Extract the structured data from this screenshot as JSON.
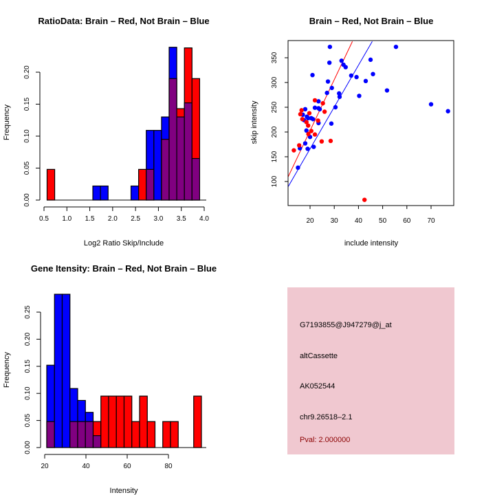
{
  "colors": {
    "brain": "#ff0000",
    "not_brain": "#0000ff",
    "overlap": "#800080",
    "info_bg": "#f0c8d0",
    "pval": "#8b0000"
  },
  "chart_data": [
    {
      "id": "ratio-hist",
      "type": "bar",
      "title": "RatioData: Brain – Red, Not Brain – Blue",
      "xlabel": "Log2 Ratio Skip/Include",
      "ylabel": "Frequency",
      "xlim": [
        0.5,
        4.0
      ],
      "ylim": [
        0,
        0.24
      ],
      "xticks": [
        "0.5",
        "1.0",
        "1.5",
        "2.0",
        "2.5",
        "3.0",
        "3.5",
        "4.0"
      ],
      "xtick_values": [
        0.5,
        1.0,
        1.5,
        2.0,
        2.5,
        3.0,
        3.5,
        4.0
      ],
      "yticks": [
        "0.00",
        "0.05",
        "0.10",
        "0.15",
        "0.20"
      ],
      "ytick_values": [
        0,
        0.05,
        0.1,
        0.15,
        0.2
      ],
      "bin_start": 0.567,
      "bin_width": 0.1667,
      "series": [
        {
          "name": "Brain",
          "color": "#ff0000",
          "values": [
            0.048,
            0,
            0,
            0,
            0,
            0,
            0,
            0,
            0,
            0,
            0,
            0,
            0.048,
            0.048,
            0,
            0.095,
            0.19,
            0.143,
            0.238,
            0.19
          ]
        },
        {
          "name": "Not Brain",
          "color": "#0000ff",
          "values": [
            0,
            0,
            0,
            0,
            0,
            0,
            0.022,
            0.022,
            0,
            0,
            0,
            0.022,
            0,
            0.109,
            0.109,
            0.13,
            0.239,
            0.13,
            0.152,
            0.065
          ]
        }
      ]
    },
    {
      "id": "scatter",
      "type": "scatter",
      "title": "Brain – Red, Not Brain – Blue",
      "xlabel": "include intensity",
      "ylabel": "skip intensity",
      "xlim": [
        11,
        80
      ],
      "ylim": [
        50,
        383
      ],
      "xticks": [
        "20",
        "30",
        "40",
        "50",
        "60",
        "70"
      ],
      "xtick_values": [
        20,
        30,
        40,
        50,
        60,
        70
      ],
      "yticks": [
        "100",
        "150",
        "200",
        "250",
        "300",
        "350"
      ],
      "ytick_values": [
        100,
        150,
        200,
        250,
        300,
        350
      ],
      "series": [
        {
          "name": "Brain",
          "color": "#ff0000",
          "points": [
            [
              13.3,
              163
            ],
            [
              15.5,
              173
            ],
            [
              16,
              236
            ],
            [
              16.5,
              244
            ],
            [
              16.8,
              226
            ],
            [
              18.5,
              220
            ],
            [
              19.2,
              213
            ],
            [
              19.3,
              196
            ],
            [
              19.7,
              238
            ],
            [
              20.5,
              202
            ],
            [
              22,
              264
            ],
            [
              22,
              195
            ],
            [
              23.3,
              223
            ],
            [
              24.8,
              181
            ],
            [
              25.3,
              258
            ],
            [
              26,
              241
            ],
            [
              28.5,
              182
            ],
            [
              42.5,
              63
            ]
          ],
          "fit_line": [
            [
              11,
              110
            ],
            [
              37.5,
              383
            ]
          ]
        },
        {
          "name": "Not Brain",
          "color": "#0000ff",
          "points": [
            [
              15,
              128
            ],
            [
              15.8,
              167
            ],
            [
              17,
              235
            ],
            [
              17.5,
              224
            ],
            [
              18,
              246
            ],
            [
              18,
              177
            ],
            [
              18.5,
              203
            ],
            [
              18.7,
              231
            ],
            [
              19,
              166
            ],
            [
              19.2,
              228
            ],
            [
              20,
              190
            ],
            [
              20.5,
              228
            ],
            [
              21,
              315
            ],
            [
              21.2,
              226
            ],
            [
              21.5,
              170
            ],
            [
              22,
              249
            ],
            [
              23.5,
              262
            ],
            [
              23.5,
              248
            ],
            [
              23.5,
              218
            ],
            [
              24,
              246
            ],
            [
              27,
              279
            ],
            [
              27.4,
              302
            ],
            [
              28,
              340
            ],
            [
              28.2,
              372
            ],
            [
              28.8,
              217
            ],
            [
              29,
              289
            ],
            [
              30.5,
              250
            ],
            [
              32,
              278
            ],
            [
              32.2,
              271
            ],
            [
              33,
              344
            ],
            [
              33.8,
              336
            ],
            [
              34.7,
              331
            ],
            [
              37,
              314
            ],
            [
              39.2,
              311
            ],
            [
              40.3,
              273
            ],
            [
              43,
              303
            ],
            [
              45,
              346
            ],
            [
              46,
              317
            ],
            [
              51.8,
              284
            ],
            [
              55.5,
              372
            ],
            [
              70,
              256
            ],
            [
              77,
              242
            ]
          ],
          "fit_line": [
            [
              11,
              90
            ],
            [
              45.7,
              383
            ]
          ]
        }
      ]
    },
    {
      "id": "intensity-hist",
      "type": "bar",
      "title": "Gene Itensity: Brain – Red, Not Brain – Blue",
      "xlabel": "Intensity",
      "ylabel": "Frequency",
      "xlim": [
        20,
        98
      ],
      "ylim": [
        0,
        0.285
      ],
      "xticks": [
        "20",
        "40",
        "60",
        "80"
      ],
      "xtick_values": [
        20,
        40,
        60,
        80
      ],
      "yticks": [
        "0.00",
        "0.05",
        "0.10",
        "0.15",
        "0.20",
        "0.25"
      ],
      "ytick_values": [
        0,
        0.05,
        0.1,
        0.15,
        0.2,
        0.25
      ],
      "bin_start": 21,
      "bin_width": 3.75,
      "series": [
        {
          "name": "Brain",
          "color": "#ff0000",
          "values": [
            0.048,
            0,
            0,
            0.048,
            0.048,
            0.048,
            0.048,
            0.095,
            0.095,
            0.095,
            0.095,
            0.048,
            0.095,
            0.048,
            0,
            0.048,
            0.048,
            0,
            0,
            0.095
          ]
        },
        {
          "name": "Not Brain",
          "color": "#0000ff",
          "values": [
            0.152,
            0.283,
            0.283,
            0.109,
            0.087,
            0.065,
            0.022,
            0,
            0,
            0,
            0,
            0,
            0,
            0,
            0,
            0,
            0,
            0,
            0,
            0
          ]
        }
      ]
    }
  ],
  "info_panel": {
    "probe_id": "G7193855@J947279@j_at",
    "event_type": "altCassette",
    "accession": "AK052544",
    "location": "chr9.26518–2.1",
    "pval": "Pval: 2.000000"
  }
}
